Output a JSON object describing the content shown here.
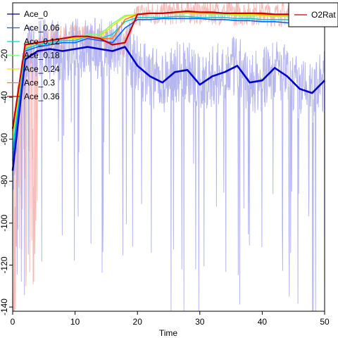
{
  "chart_data": {
    "type": "line",
    "title": "",
    "xlabel": "Time",
    "ylabel": "",
    "xlim": [
      0,
      50
    ],
    "ylim": [
      -142,
      5
    ],
    "x_ticks": [
      0,
      10,
      20,
      30,
      40,
      50
    ],
    "y_ticks": [
      -140,
      -120,
      -100,
      -80,
      -60,
      -40,
      -20
    ],
    "grid": false,
    "legend_main": {
      "placement": "top-left",
      "entries": [
        {
          "name": "Ace_0",
          "color": "#000080"
        },
        {
          "name": "Ace_0.06",
          "color": "#0066ff"
        },
        {
          "name": "Ace_0.12",
          "color": "#00d5d5"
        },
        {
          "name": "Ace_0.18",
          "color": "#80ff80"
        },
        {
          "name": "Ace_0.24",
          "color": "#e6e600"
        },
        {
          "name": "Ace_0.3",
          "color": "#ff8000"
        },
        {
          "name": "Ace_0.36",
          "color": "#cc0000"
        }
      ]
    },
    "legend_secondary": {
      "placement": "top-right",
      "entries": [
        {
          "name": "O2Rat",
          "color": "#cc0000"
        }
      ]
    },
    "series": [
      {
        "name": "Ace_0",
        "color": "#0000cc",
        "x": [
          0,
          2,
          4,
          6,
          8,
          10,
          12,
          14,
          16,
          18,
          20,
          22,
          24,
          26,
          28,
          30,
          32,
          34,
          36,
          38,
          40,
          42,
          44,
          46,
          48,
          50
        ],
        "values": [
          -75,
          -22,
          -18,
          -17,
          -18,
          -17,
          -16,
          -17,
          -18,
          -16,
          -25,
          -30,
          -33,
          -28,
          -27,
          -34,
          -30,
          -28,
          -25,
          -33,
          -32,
          -26,
          -30,
          -36,
          -38,
          -32
        ]
      },
      {
        "name": "Ace_0.06",
        "color": "#0066ff",
        "x": [
          0,
          2,
          4,
          6,
          8,
          10,
          12,
          14,
          16,
          18,
          20,
          22,
          24,
          26,
          28,
          30,
          32,
          34,
          36,
          38,
          40,
          42,
          44,
          46,
          48,
          50
        ],
        "values": [
          -70,
          -18,
          -16,
          -15,
          -14,
          -14,
          -12,
          -13,
          -14,
          -7,
          -3,
          -3,
          -2.5,
          -2.5,
          -2.5,
          -2.5,
          -3,
          -3,
          -3.5,
          -3.5,
          -4,
          -4,
          -4.5,
          -5,
          -5,
          -5
        ]
      },
      {
        "name": "Ace_0.12",
        "color": "#00d5d5",
        "x": [
          0,
          2,
          4,
          6,
          8,
          10,
          12,
          14,
          16,
          18,
          20,
          22,
          24,
          26,
          28,
          30,
          32,
          34,
          36,
          38,
          40,
          42,
          44,
          46,
          48,
          50
        ],
        "values": [
          -65,
          -17,
          -15,
          -14,
          -13,
          -13,
          -11,
          -12,
          -10,
          -4,
          -2,
          -2,
          -2,
          -1.5,
          -1.5,
          -2,
          -2,
          -2,
          -2.5,
          -2.5,
          -3,
          -3,
          -3,
          -3.5,
          -3.5,
          -3.5
        ]
      },
      {
        "name": "Ace_0.18",
        "color": "#80ff80",
        "x": [
          0,
          2,
          4,
          6,
          8,
          10,
          12,
          14,
          16,
          18,
          20,
          22,
          24,
          26,
          28,
          30,
          32,
          34,
          36,
          38,
          40,
          42,
          44,
          46,
          48,
          50
        ],
        "values": [
          -60,
          -16,
          -14,
          -13,
          -12,
          -12,
          -10,
          -10,
          -5,
          -1,
          -0.5,
          0,
          0,
          0,
          0,
          0,
          -0.5,
          -0.5,
          -1,
          -1,
          -1,
          -1.5,
          -1.5,
          -2,
          -2,
          -2
        ]
      },
      {
        "name": "Ace_0.24",
        "color": "#e6e600",
        "x": [
          0,
          2,
          4,
          6,
          8,
          10,
          12,
          14,
          16,
          18,
          20,
          22,
          24,
          26,
          28,
          30,
          32,
          34,
          36,
          38,
          40,
          42,
          44,
          46,
          48,
          50
        ],
        "values": [
          -58,
          -16,
          -14,
          -13,
          -12,
          -12,
          -11,
          -11,
          -6,
          -1.5,
          -0.5,
          0,
          0,
          0.5,
          0.5,
          0,
          0,
          0,
          -0.5,
          -0.5,
          -1,
          -1,
          -1,
          -1.5,
          -1.5,
          -1.5
        ]
      },
      {
        "name": "Ace_0.3",
        "color": "#ff8000",
        "x": [
          0,
          2,
          4,
          6,
          8,
          10,
          12,
          14,
          16,
          18,
          20,
          22,
          24,
          26,
          28,
          30,
          32,
          34,
          36,
          38,
          40,
          42,
          44,
          46,
          48,
          50
        ],
        "values": [
          -56,
          -15,
          -14,
          -13,
          -12,
          -11,
          -11,
          -12,
          -12,
          -3,
          -0.5,
          0,
          0,
          0.5,
          0.5,
          0.5,
          0,
          0,
          0,
          0,
          -0.5,
          -0.5,
          -0.5,
          -1,
          -1,
          -1
        ]
      },
      {
        "name": "Ace_0.36",
        "color": "#cc0000",
        "x": [
          0,
          2,
          4,
          6,
          8,
          10,
          12,
          14,
          16,
          18,
          20,
          22,
          24,
          26,
          28,
          30,
          32,
          34,
          36,
          38,
          40,
          42,
          44,
          46,
          48,
          50
        ],
        "values": [
          -55,
          -15,
          -14,
          -13,
          -12,
          -11,
          -11,
          -12,
          -15,
          -14,
          -0.5,
          0,
          0,
          0.5,
          1,
          0.5,
          0.5,
          0,
          0,
          0,
          0,
          -0.5,
          -0.5,
          -0.5,
          -1,
          -1
        ]
      }
    ]
  }
}
